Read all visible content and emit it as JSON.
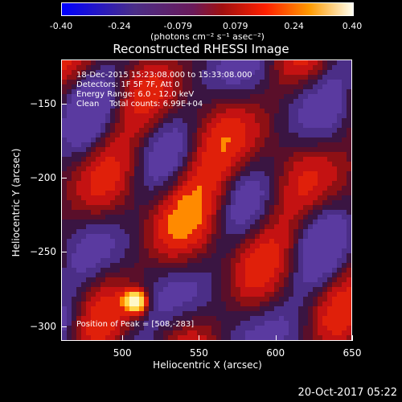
{
  "colorbar": {
    "tick_labels": [
      "-0.40",
      "-0.24",
      "-0.079",
      "0.079",
      "0.24",
      "0.40"
    ],
    "tick_values": [
      -0.4,
      -0.24,
      -0.079,
      0.079,
      0.24,
      0.4
    ],
    "units": "(photons cm⁻² s⁻¹ asec⁻²)",
    "range": [
      -0.4,
      0.4
    ]
  },
  "image": {
    "title": "Reconstructed RHESSI Image",
    "info_lines": [
      "18-Dec-2015 15:23:08.000 to 15:33:08.000",
      "Detectors: 1F 5F 7F, Att 0",
      "Energy Range: 6.0 - 12.0 keV",
      "Clean    Total counts: 6.99E+04"
    ],
    "peak_label": "Position of Peak = [508,-283]",
    "peak_position": [
      508,
      -283
    ]
  },
  "axes": {
    "x_label": "Heliocentric X (arcsec)",
    "y_label": "Heliocentric Y (arcsec)",
    "x_range": [
      460,
      650
    ],
    "y_range": [
      -310,
      -120
    ],
    "x_ticks": [
      500,
      550,
      600,
      650
    ],
    "y_ticks": [
      -150,
      -200,
      -250,
      -300
    ]
  },
  "timestamp": "20-Oct-2017 05:22",
  "colors": {
    "negative": "#4b2e87",
    "positive": "#c41212",
    "peak": "#ffd84a"
  }
}
